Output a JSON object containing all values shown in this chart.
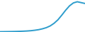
{
  "line_color": "#2E9DCC",
  "line_width": 1.4,
  "background_color": "#ffffff",
  "values": [
    0.1,
    0.12,
    0.14,
    0.16,
    0.19,
    0.23,
    0.28,
    0.35,
    0.45,
    0.6,
    0.8,
    1.1,
    1.5,
    2.1,
    3.0,
    4.2,
    5.8,
    7.5,
    9.0,
    10.0,
    10.4,
    10.1,
    9.8
  ],
  "xlim": [
    0,
    22
  ],
  "ylim": [
    0,
    11
  ]
}
